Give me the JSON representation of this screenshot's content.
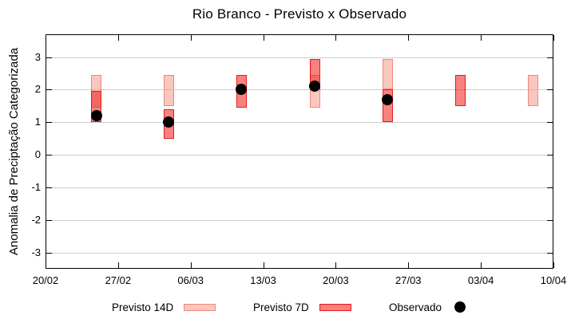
{
  "title": "Rio Branco - Previsto x Observado",
  "y_axis": {
    "label": "Anomalia de Preciptação Categorizada",
    "tick_labels": [
      "3",
      "2",
      "1",
      "0",
      "-1",
      "-2",
      "-3"
    ]
  },
  "x_axis": {
    "tick_labels": [
      "20/02",
      "27/02",
      "06/03",
      "13/03",
      "20/03",
      "27/03",
      "03/04",
      "10/04"
    ]
  },
  "legend": {
    "items": [
      {
        "label": "Previsto 14D",
        "swatch": "box",
        "fill": "#f9c7bf",
        "border": "#f08878"
      },
      {
        "label": "Previsto 7D",
        "swatch": "box",
        "fill": "#f8807f",
        "border": "#e41a1c"
      },
      {
        "label": "Observado",
        "swatch": "dot",
        "fill": "#000000"
      }
    ]
  },
  "colors": {
    "previsto_14d_fill_rgba": "rgba(243,143,127,0.5)",
    "previsto_14d_border": "#f08878",
    "previsto_7d_fill_rgba": "rgba(242,15,12,0.52)",
    "previsto_7d_border": "#e41a1c",
    "observado": "#000000",
    "grid": "#9c9c9c",
    "axis": "#000000"
  },
  "chart_data": {
    "type": "bar",
    "title": "Rio Branco - Previsto x Observado",
    "xlabel": "",
    "ylabel": "Anomalia de Preciptação Categorizada",
    "ylim": [
      -3.5,
      3.7
    ],
    "y_ticks": [
      3,
      2,
      1,
      0,
      -1,
      -2,
      -3
    ],
    "grid": true,
    "legend_position": "below",
    "x_tick_labels": [
      "20/02",
      "27/02",
      "06/03",
      "13/03",
      "20/03",
      "27/03",
      "03/04",
      "10/04"
    ],
    "x_tick_days": [
      0,
      7,
      14,
      21,
      28,
      35,
      42,
      49
    ],
    "total_days": 49,
    "series": [
      {
        "name": "Previsto 14D",
        "type": "range_bar",
        "points": [
          {
            "x": "25/02",
            "day": 4.9,
            "low": 1.45,
            "high": 2.45
          },
          {
            "x": "04/03",
            "day": 11.9,
            "low": 1.5,
            "high": 2.45
          },
          {
            "x": "18/03",
            "day": 26.0,
            "low": 1.45,
            "high": 2.45
          },
          {
            "x": "25/03",
            "day": 33.0,
            "low": 2.0,
            "high": 2.95
          },
          {
            "x": "08/04",
            "day": 47.0,
            "low": 1.5,
            "high": 2.45
          }
        ]
      },
      {
        "name": "Previsto 7D",
        "type": "range_bar",
        "points": [
          {
            "x": "25/02",
            "day": 4.9,
            "low": 1.0,
            "high": 1.95
          },
          {
            "x": "04/03",
            "day": 11.9,
            "low": 0.5,
            "high": 1.4
          },
          {
            "x": "11/03",
            "day": 18.9,
            "low": 1.45,
            "high": 2.45
          },
          {
            "x": "18/03",
            "day": 26.0,
            "low": 2.0,
            "high": 2.95
          },
          {
            "x": "25/03",
            "day": 33.0,
            "low": 1.0,
            "high": 2.0
          },
          {
            "x": "01/04",
            "day": 40.0,
            "low": 1.5,
            "high": 2.45
          }
        ]
      },
      {
        "name": "Observado",
        "type": "scatter",
        "points": [
          {
            "x": "25/02",
            "day": 4.9,
            "value": 1.2
          },
          {
            "x": "04/03",
            "day": 11.9,
            "value": 1.0
          },
          {
            "x": "11/03",
            "day": 18.9,
            "value": 2.0
          },
          {
            "x": "18/03",
            "day": 26.0,
            "value": 2.1
          },
          {
            "x": "25/03",
            "day": 33.0,
            "value": 1.7
          }
        ]
      }
    ]
  }
}
